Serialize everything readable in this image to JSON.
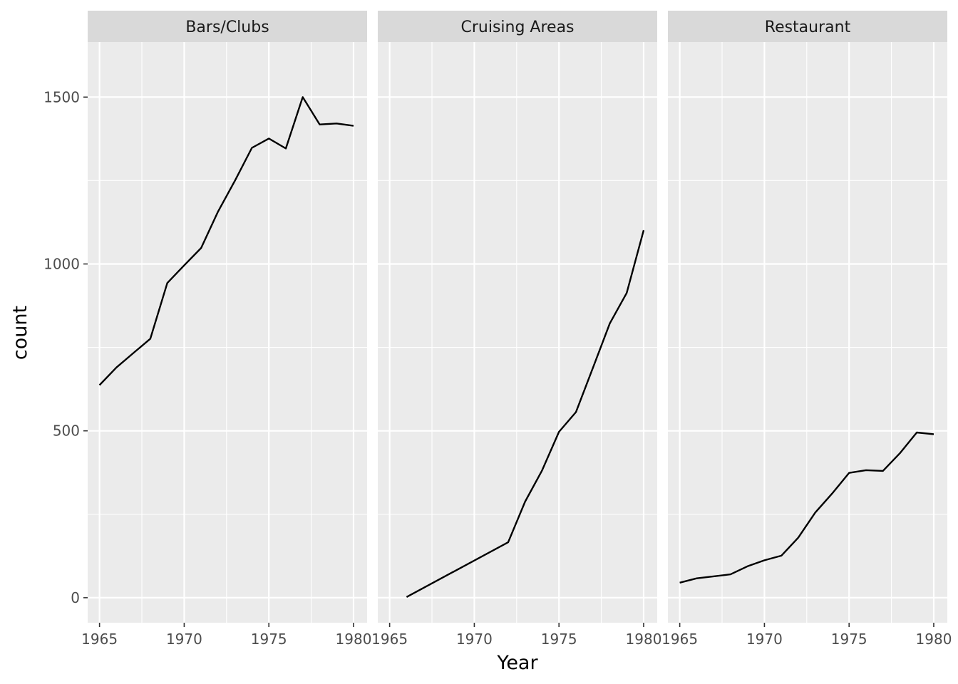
{
  "chart_data": {
    "type": "line",
    "xlabel": "Year",
    "ylabel": "count",
    "xlim": [
      1964.3,
      1980.8
    ],
    "ylim": [
      -75,
      1665
    ],
    "x_ticks": [
      1965,
      1970,
      1975,
      1980
    ],
    "x_tick_labels": [
      "1965",
      "1970",
      "1975",
      "1980"
    ],
    "y_ticks": [
      0,
      500,
      1000,
      1500
    ],
    "y_tick_labels": [
      "0",
      "500",
      "1000",
      "1500"
    ],
    "grid": true,
    "colors": {
      "panel_background": "#ebebeb",
      "strip_background": "#d9d9d9",
      "grid": "#ffffff",
      "line": "#000000",
      "tick": "#333333"
    },
    "facets": [
      {
        "name": "Bars/Clubs",
        "x": [
          1965,
          1966,
          1967,
          1968,
          1969,
          1970,
          1971,
          1972,
          1973,
          1974,
          1975,
          1976,
          1977,
          1978,
          1979,
          1980
        ],
        "y": [
          637,
          690,
          733,
          776,
          943,
          996,
          1048,
          1157,
          1250,
          1348,
          1376,
          1346,
          1500,
          1418,
          1421,
          1414
        ]
      },
      {
        "name": "Cruising Areas",
        "x": [
          1966,
          1972,
          1973,
          1974,
          1975,
          1976,
          1977,
          1978,
          1979,
          1980
        ],
        "y": [
          2,
          166,
          288,
          381,
          497,
          556,
          688,
          822,
          913,
          1101
        ]
      },
      {
        "name": "Restaurant",
        "x": [
          1965,
          1966,
          1967,
          1968,
          1969,
          1970,
          1971,
          1972,
          1973,
          1974,
          1975,
          1976,
          1977,
          1978,
          1979,
          1980
        ],
        "y": [
          45,
          58,
          64,
          70,
          94,
          112,
          126,
          180,
          255,
          312,
          374,
          382,
          380,
          433,
          495,
          490
        ]
      }
    ]
  }
}
